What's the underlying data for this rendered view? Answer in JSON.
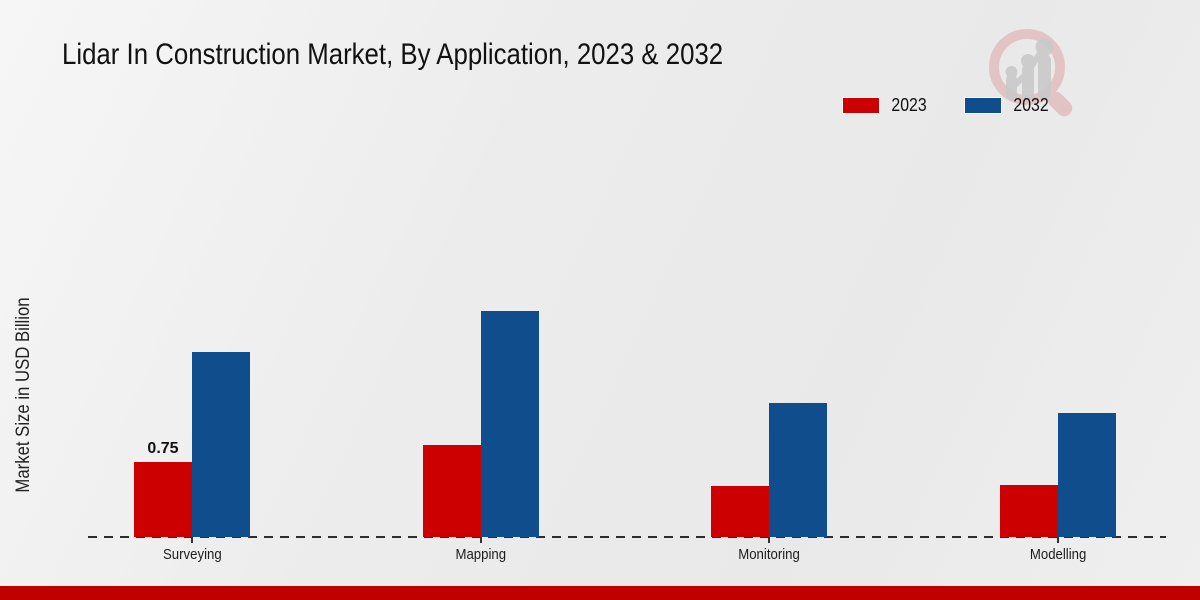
{
  "header": {
    "title": "Lidar In Construction Market, By Application, 2023 & 2032"
  },
  "chart_data": {
    "type": "bar",
    "title": "Lidar In Construction Market, By Application, 2023 & 2032",
    "categories": [
      "Surveying",
      "Mapping",
      "Monitoring",
      "Modelling"
    ],
    "series": [
      {
        "name": "2023",
        "color": "#cc0000",
        "values": [
          0.75,
          0.92,
          0.51,
          0.52
        ]
      },
      {
        "name": "2032",
        "color": "#104d8c",
        "values": [
          1.85,
          2.26,
          1.34,
          1.24
        ]
      }
    ],
    "xlabel": "",
    "ylabel": "Market Size in USD Billion",
    "ylim": [
      0,
      3
    ],
    "grid": false,
    "axis_style": "dashed-baseline-only",
    "legend_position": "top-right",
    "bar_labels": [
      {
        "category_index": 0,
        "series_index": 0,
        "text": "0.75"
      }
    ]
  },
  "footer": {
    "accent_color": "#c00000"
  },
  "watermark": {
    "icon": "chart-magnifier-logo"
  }
}
